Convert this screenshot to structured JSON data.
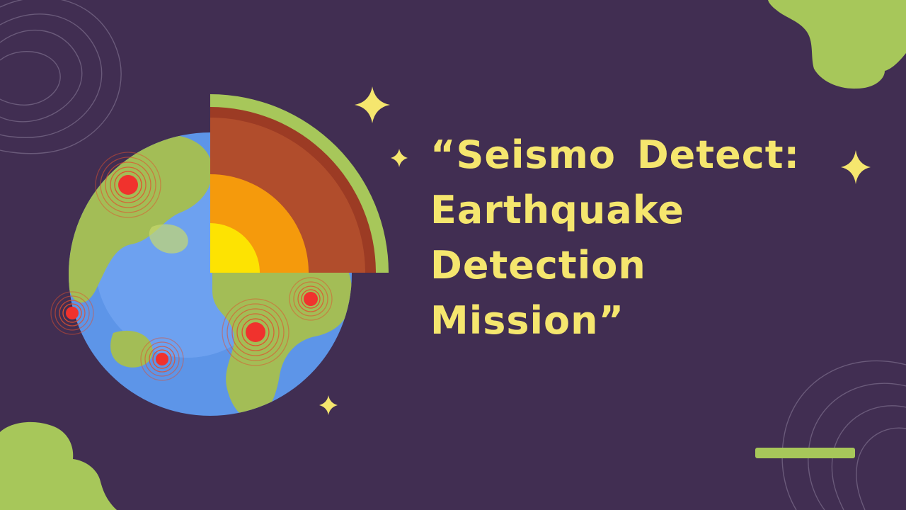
{
  "title": {
    "lines": [
      "“Seismo  Detect:",
      "Earthquake",
      "Detection",
      "Mission”"
    ]
  },
  "colors": {
    "background": "#412e52",
    "title_text": "#f5e66e",
    "accent_green": "#a7c75a",
    "ocean": "#5d95e8",
    "land": "#a3bd56",
    "crust": "#b14d2c",
    "mantle": "#f59a0c",
    "core": "#fde302",
    "quake_marker": "#f0322d"
  },
  "icons": [
    "sparkle-icon",
    "globe-illustration",
    "earth-cross-section",
    "epicenter-marker"
  ]
}
